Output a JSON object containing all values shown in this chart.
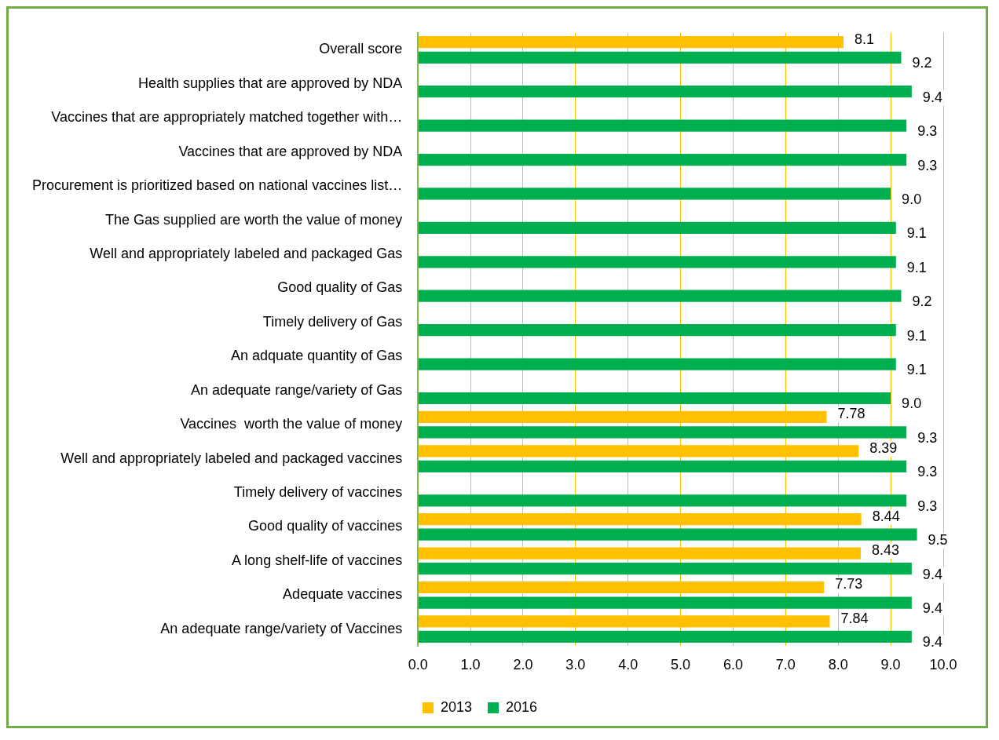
{
  "chart_data": {
    "type": "bar",
    "orientation": "horizontal",
    "categories": [
      "Overall score",
      "Health supplies that are approved by NDA",
      "Vaccines that are appropriately matched together with…",
      "Vaccines that are approved by NDA",
      "Procurement is prioritized based on national vaccines list…",
      "The Gas supplied are worth the value of money",
      "Well and appropriately labeled and packaged Gas",
      "Good quality of Gas",
      "Timely delivery of Gas",
      "An adquate quantity of Gas",
      "An adequate range/variety of Gas",
      "Vaccines  worth the value of money",
      "Well and appropriately labeled and packaged vaccines",
      "Timely delivery of vaccines",
      "Good quality of vaccines",
      "A long shelf-life of vaccines",
      "Adequate vaccines",
      "An adequate range/variety of Vaccines"
    ],
    "series": [
      {
        "name": "2013",
        "color": "#ffc000",
        "values": [
          8.1,
          null,
          null,
          null,
          null,
          null,
          null,
          null,
          null,
          null,
          null,
          7.78,
          8.39,
          null,
          8.44,
          8.43,
          7.73,
          7.84
        ],
        "value_labels": [
          "8.1",
          null,
          null,
          null,
          null,
          null,
          null,
          null,
          null,
          null,
          null,
          "7.78",
          "8.39",
          null,
          "8.44",
          "8.43",
          "7.73",
          "7.84"
        ]
      },
      {
        "name": "2016",
        "color": "#00b050",
        "values": [
          9.2,
          9.4,
          9.3,
          9.3,
          9.0,
          9.1,
          9.1,
          9.2,
          9.1,
          9.1,
          9.0,
          9.3,
          9.3,
          9.3,
          9.5,
          9.4,
          9.4,
          9.4
        ],
        "value_labels": [
          "9.2",
          "9.4",
          "9.3",
          "9.3",
          "9.0",
          "9.1",
          "9.1",
          "9.2",
          "9.1",
          "9.1",
          "9.0",
          "9.3",
          "9.3",
          "9.3",
          "9.5",
          "9.4",
          "9.4",
          "9.4"
        ]
      }
    ],
    "xlim": [
      0,
      10
    ],
    "xticks": [
      {
        "value": 0,
        "label": "0.0"
      },
      {
        "value": 1,
        "label": "1.0"
      },
      {
        "value": 2,
        "label": "2.0"
      },
      {
        "value": 3,
        "label": "3.0"
      },
      {
        "value": 4,
        "label": "4.0"
      },
      {
        "value": 5,
        "label": "5.0"
      },
      {
        "value": 6,
        "label": "6.0"
      },
      {
        "value": 7,
        "label": "7.0"
      },
      {
        "value": 8,
        "label": "8.0"
      },
      {
        "value": 9,
        "label": "9.0"
      },
      {
        "value": 10,
        "label": "10.0"
      }
    ],
    "grid": "x",
    "legend": "bottom"
  }
}
